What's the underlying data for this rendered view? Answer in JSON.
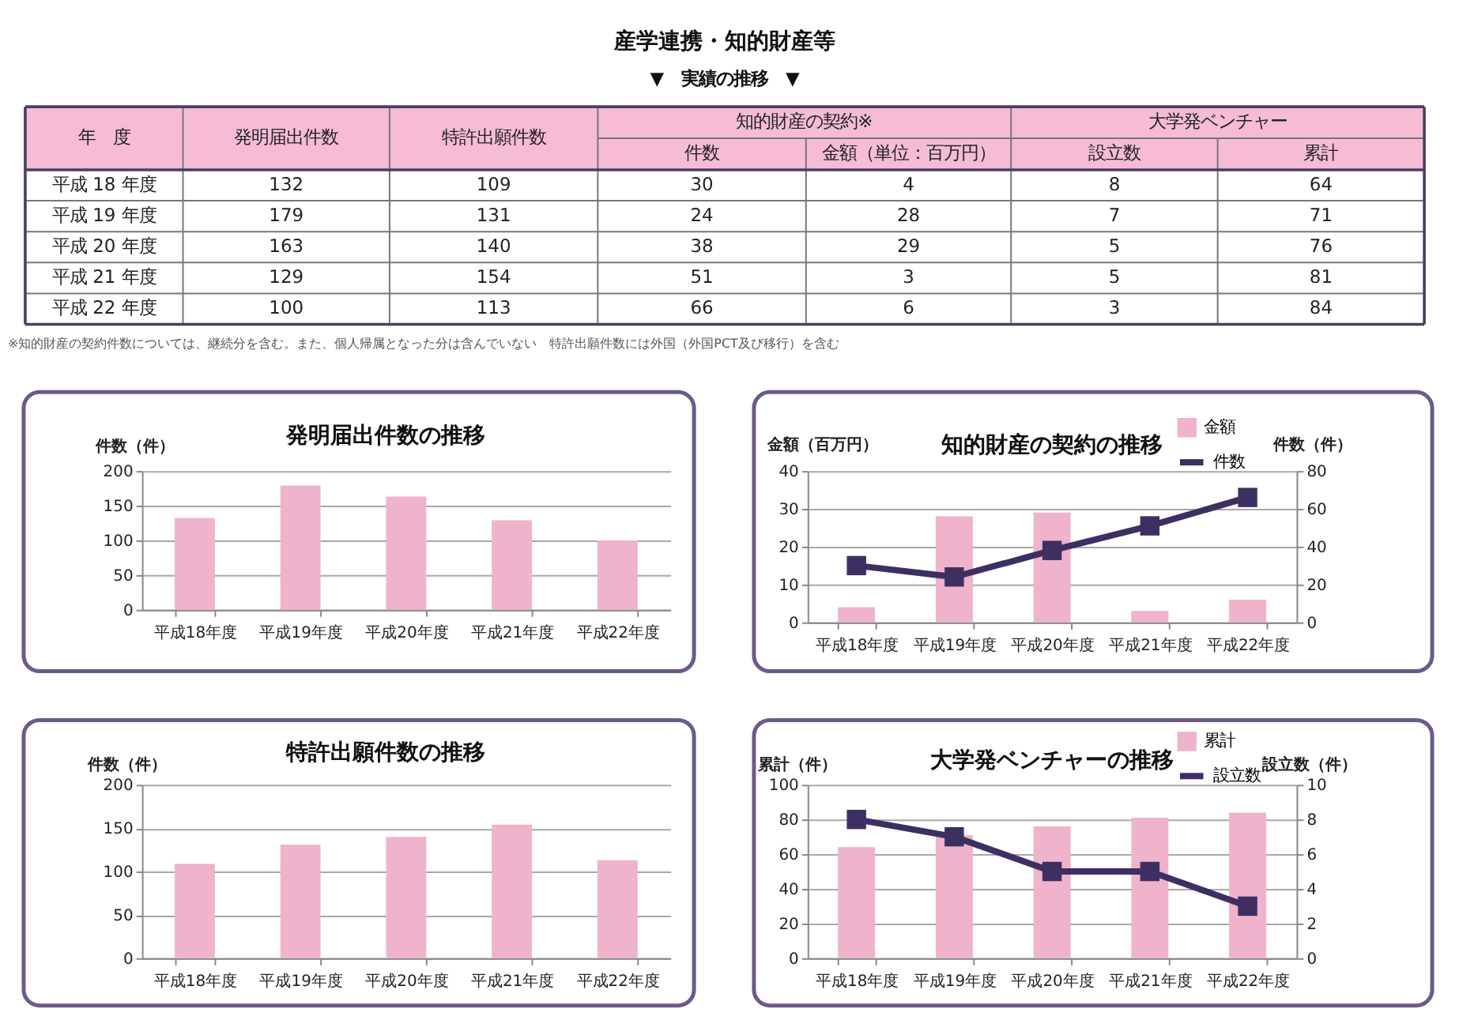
{
  "chart_data": [
    {
      "type": "other",
      "title": "産学連携・知的財産等",
      "subtitle": "▼　実績の推移　▼",
      "xlabel": "年　度",
      "categories": [
        "平成 18 年度",
        "平成 19 年度",
        "平成 20 年度",
        "平成 21 年度",
        "平成 22 年度"
      ],
      "series": [
        {
          "name": "発明届出件数",
          "values": [
            132,
            179,
            163,
            129,
            100
          ]
        },
        {
          "name": "特許出願件数",
          "values": [
            109,
            131,
            140,
            154,
            113
          ]
        },
        {
          "name": "件数",
          "values": [
            30,
            24,
            38,
            51,
            66
          ]
        },
        {
          "name": "金額（単位：百万円）",
          "values": [
            4,
            28,
            29,
            3,
            6
          ]
        },
        {
          "name": "設立数",
          "values": [
            8,
            7,
            5,
            5,
            3
          ]
        },
        {
          "name": "累計",
          "values": [
            64,
            71,
            76,
            81,
            84
          ]
        }
      ],
      "annotations": [
        "知的財産の契約※",
        "大学発ベンチャー",
        "※知的財産の契約件数については、継続分を含む。また、個人帰属となった分は含んでいない　特許出願件数には外国（外国PCT及び移行）を含む"
      ],
      "data_labels": true
    },
    {
      "type": "bar",
      "title": "発明届出件数の推移",
      "ylabel": "件数（件）",
      "categories": [
        "平成18年度",
        "平成19年度",
        "平成20年度",
        "平成21年度",
        "平成22年度"
      ],
      "values": [
        132,
        179,
        163,
        129,
        100
      ],
      "color": "#efb3cc",
      "ylim": [
        0,
        200
      ],
      "yticks": [
        0,
        50,
        100,
        150,
        200
      ],
      "grid": "y"
    },
    {
      "type": "bar",
      "title": "知的財産の契約の推移",
      "ylabel": "金額（百万円）",
      "y2label": "件数（件）",
      "categories": [
        "平成18年度",
        "平成19年度",
        "平成20年度",
        "平成21年度",
        "平成22年度"
      ],
      "series": [
        {
          "name": "金額",
          "color": "#efb3cc",
          "values": [
            4,
            28,
            29,
            3,
            6
          ]
        },
        {
          "name": "件数",
          "type": "line",
          "axis": "y2",
          "color": "#3e2f62",
          "values": [
            30,
            24,
            38,
            51,
            66
          ]
        }
      ],
      "ylim": [
        0,
        40
      ],
      "yticks": [
        0,
        10,
        20,
        30,
        40
      ],
      "y2lim": [
        0,
        80
      ],
      "y2ticks": [
        0,
        20,
        40,
        60,
        80
      ],
      "grid": "y",
      "legend": "top right",
      "marker": "square",
      "line_style": "solid"
    },
    {
      "type": "bar",
      "title": "特許出願件数の推移",
      "ylabel": "件数（件）",
      "categories": [
        "平成18年度",
        "平成19年度",
        "平成20年度",
        "平成21年度",
        "平成22年度"
      ],
      "values": [
        109,
        131,
        140,
        154,
        113
      ],
      "color": "#efb3cc",
      "ylim": [
        0,
        200
      ],
      "yticks": [
        0,
        50,
        100,
        150,
        200
      ],
      "grid": "y"
    },
    {
      "type": "bar",
      "title": "大学発ベンチャーの推移",
      "ylabel": "累計（件）",
      "y2label": "設立数（件）",
      "categories": [
        "平成18年度",
        "平成19年度",
        "平成20年度",
        "平成21年度",
        "平成22年度"
      ],
      "series": [
        {
          "name": "累計",
          "color": "#efb3cc",
          "values": [
            64,
            71,
            76,
            81,
            84
          ]
        },
        {
          "name": "設立数",
          "type": "line",
          "axis": "y2",
          "color": "#3e2f62",
          "values": [
            8,
            7,
            5,
            5,
            3
          ]
        }
      ],
      "ylim": [
        0,
        100
      ],
      "yticks": [
        0,
        20,
        40,
        60,
        80,
        100
      ],
      "y2lim": [
        0,
        10
      ],
      "y2ticks": [
        0,
        2,
        4,
        6,
        8,
        10
      ],
      "grid": "y",
      "legend": "top right",
      "marker": "square",
      "line_style": "solid"
    }
  ]
}
